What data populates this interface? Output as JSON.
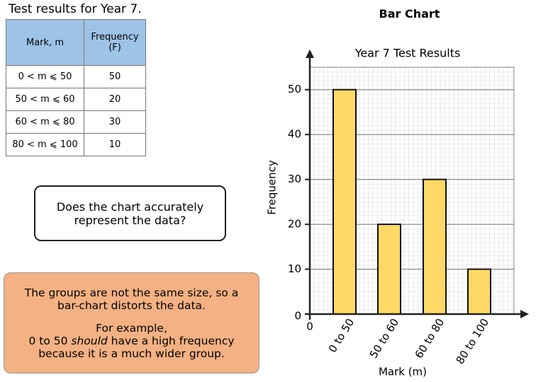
{
  "header": {
    "title": "Test results for Year 7."
  },
  "table": {
    "columns": [
      "Mark, m",
      "Frequency (F)"
    ],
    "rows": [
      [
        "0 < m ⩽ 50",
        50
      ],
      [
        "50 < m ⩽ 60",
        20
      ],
      [
        "60 < m ⩽ 80",
        30
      ],
      [
        "80 < m ⩽ 100",
        10
      ]
    ]
  },
  "question": "Does the chart accurately represent the data?",
  "answer": {
    "lead": "The groups are not the same size, so a bar-chart distorts the data.",
    "example": [
      "For example,",
      "0 to 50 ",
      "should",
      " have a high frequency because it is a much wider group."
    ]
  },
  "chart_heading": "Bar Chart",
  "chart_data": {
    "type": "bar",
    "title": "Year 7 Test Results",
    "x_label": "Mark (m)",
    "y_label": "Frequency",
    "x_origin_label": "0",
    "categories": [
      "0 to 50",
      "50 to 60",
      "60 to 80",
      "80 to 100"
    ],
    "values": [
      50,
      20,
      30,
      10
    ],
    "color": "#ffd966",
    "ylim": [
      0,
      55
    ],
    "yticks": [
      0,
      10,
      20,
      30,
      40,
      50
    ],
    "grid": true
  }
}
